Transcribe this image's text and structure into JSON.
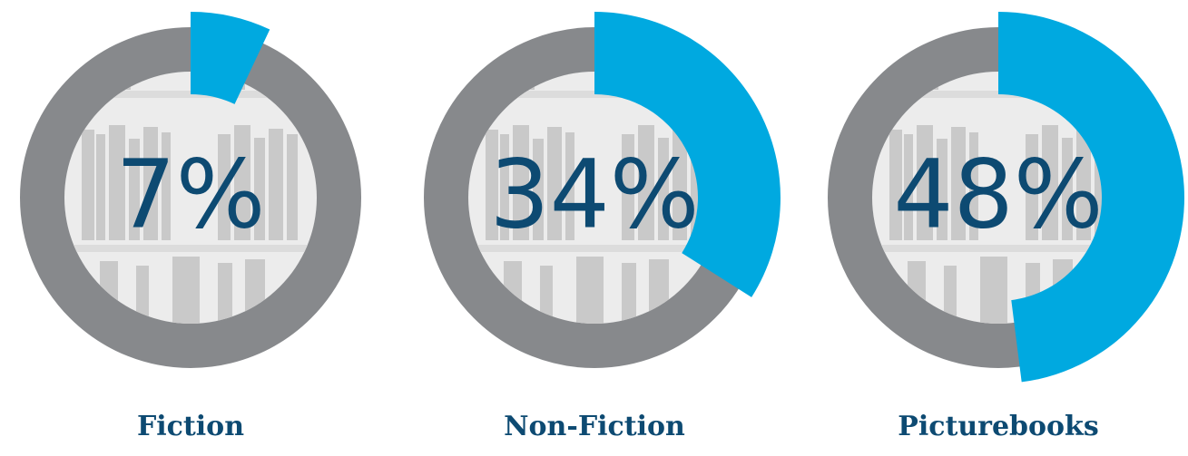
{
  "chart_data": [
    {
      "type": "donut",
      "title": "Fiction",
      "values": [
        7
      ],
      "value_labels": [
        "7%"
      ],
      "color": "#00a9e0",
      "track_color": "#87898c"
    },
    {
      "type": "donut",
      "title": "Non-Fiction",
      "values": [
        34
      ],
      "value_labels": [
        "34%"
      ],
      "color": "#00a9e0",
      "track_color": "#87898c"
    },
    {
      "type": "donut",
      "title": "Picturebooks",
      "values": [
        48
      ],
      "value_labels": [
        "48%"
      ],
      "color": "#00a9e0",
      "track_color": "#87898c"
    }
  ]
}
